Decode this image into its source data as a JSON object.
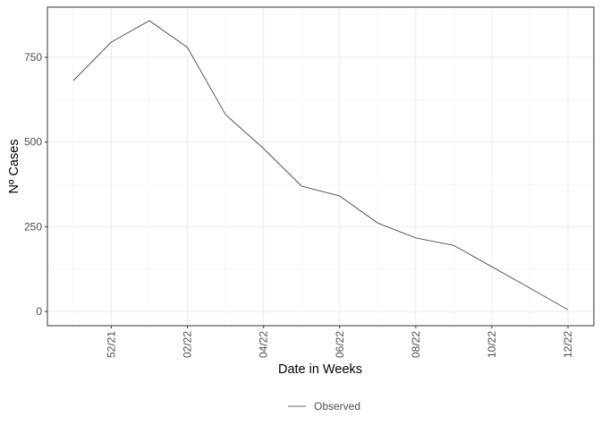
{
  "chart_data": {
    "type": "line",
    "x_label": "Date in Weeks",
    "y_label": "Nº Cases",
    "categories": [
      null,
      "52/21",
      null,
      "02/22",
      null,
      "04/22",
      null,
      "06/22",
      null,
      "08/22",
      null,
      "10/22",
      null,
      "12/22"
    ],
    "series": [
      {
        "name": "Observed",
        "color": "#333333",
        "values": [
          681,
          795,
          858,
          779,
          581,
          481,
          370,
          341,
          261,
          217,
          195,
          132,
          69,
          5
        ]
      }
    ],
    "ylim": [
      -42,
      898
    ],
    "yticks": [
      0,
      250,
      500,
      750
    ],
    "grid": true,
    "legend": "bottom"
  }
}
